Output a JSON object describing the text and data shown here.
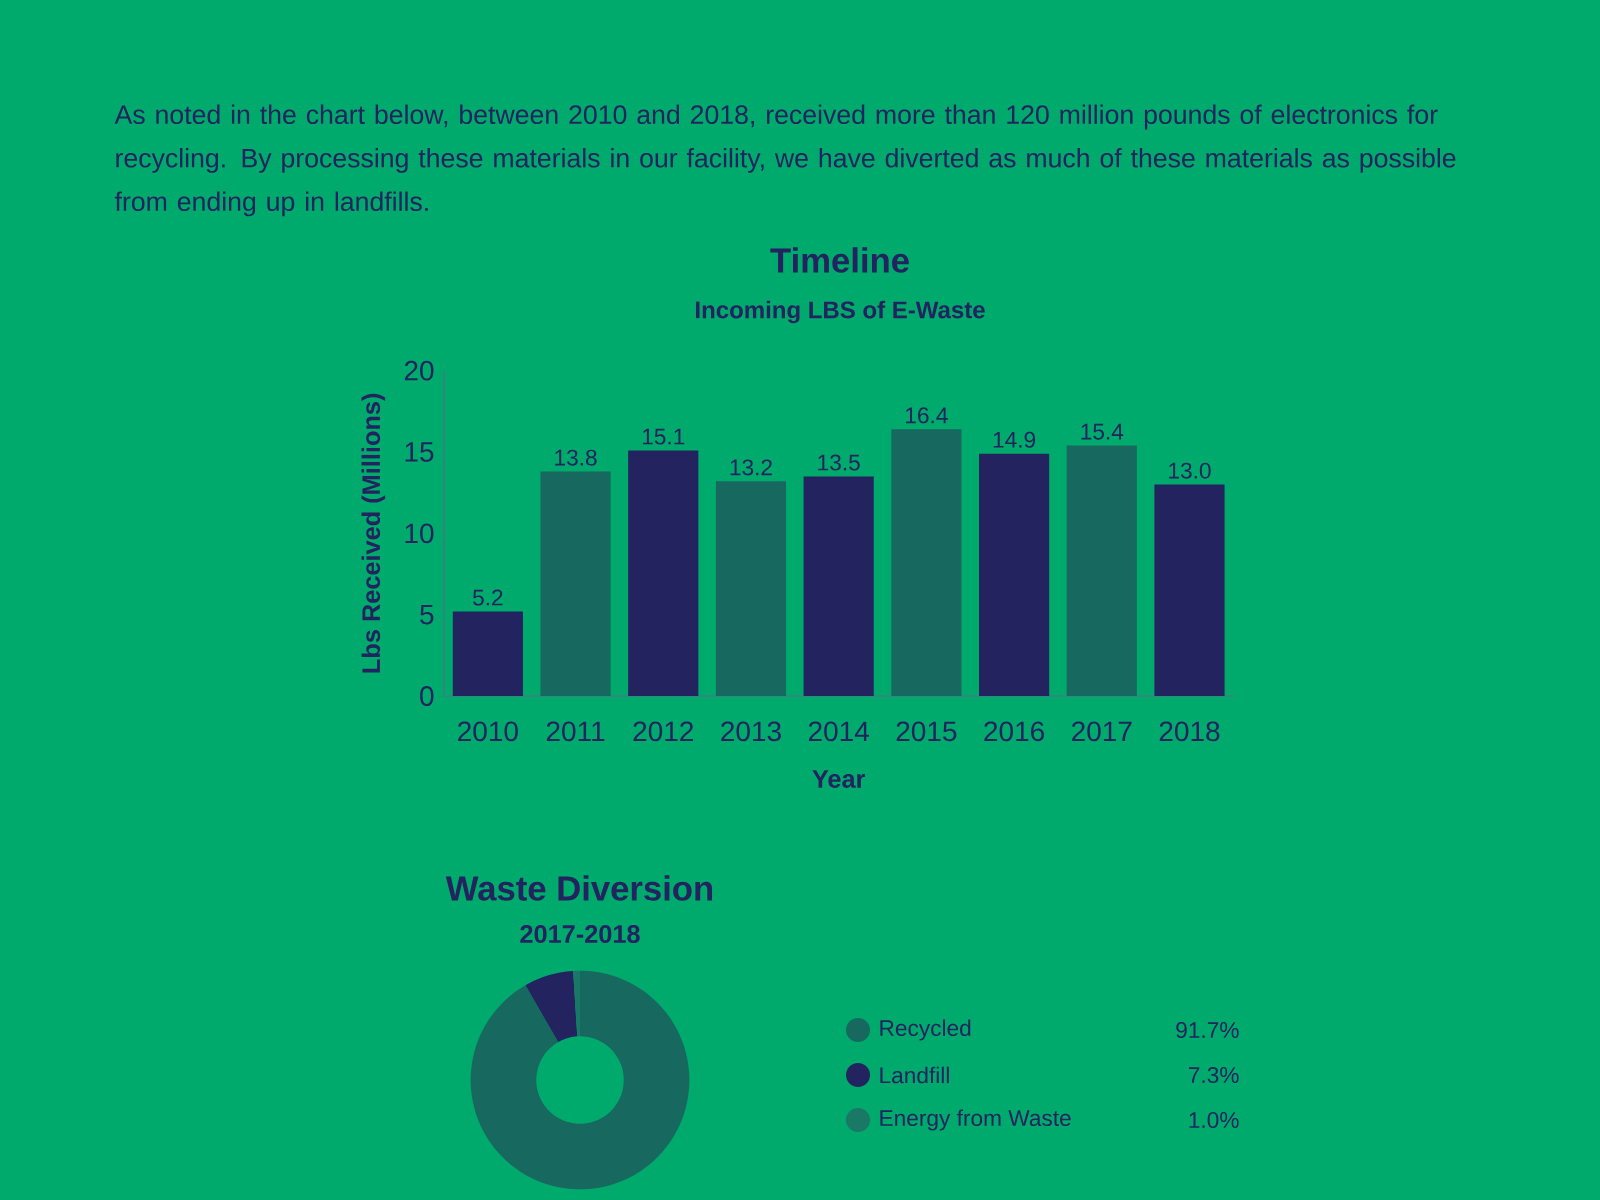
{
  "chart_data": [
    {
      "type": "bar",
      "title": "Timeline",
      "subtitle": "Incoming LBS of E-Waste",
      "xlabel": "Year",
      "ylabel": "Lbs Received (Millions)",
      "annotations": [
        "As noted in the chart below, between 2010 and 2018, received more than 120 million pounds of electronics for recycling. By processing these materials in our facility, we have diverted as much of these materials as possible from ending up in landfills."
      ],
      "categories": [
        "2010",
        "2011",
        "2012",
        "2013",
        "2014",
        "2015",
        "2016",
        "2017",
        "2018"
      ],
      "values": [
        5.2,
        13.8,
        15.1,
        13.2,
        13.5,
        16.4,
        14.9,
        15.4,
        13.0
      ],
      "colors": [
        "#22235f",
        "#17685f",
        "#22235f",
        "#17685f",
        "#22235f",
        "#17685f",
        "#22235f",
        "#17685f",
        "#22235f"
      ],
      "value_labels": [
        "5.2",
        "13.8",
        "15.1",
        "13.2",
        "13.5",
        "16.4",
        "14.9",
        "15.4",
        "13.0"
      ],
      "ylim": [
        0,
        20
      ],
      "yticks": [
        0,
        5,
        10,
        15,
        20
      ]
    },
    {
      "type": "donut",
      "title": "Waste Diversion",
      "subtitle": "2017-2018",
      "categories": [
        "Recycled",
        "Landfill",
        "Energy from Waste"
      ],
      "values": [
        91.7,
        7.3,
        1.0
      ],
      "colors": [
        "#17685f",
        "#22235f",
        "#1a7866"
      ],
      "value_labels": [
        "91.7%",
        "7.3%",
        "1.0%"
      ],
      "legend": "right"
    }
  ]
}
